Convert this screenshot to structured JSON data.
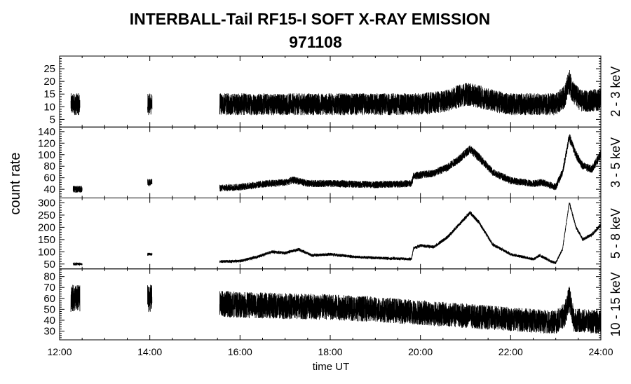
{
  "header": {
    "title": "INTERBALL-Tail RF15-I SOFT X-RAY EMISSION",
    "subtitle": "971108"
  },
  "chart_data": {
    "type": "line",
    "title": "INTERBALL-Tail RF15-I SOFT X-RAY EMISSION",
    "subtitle": "971108",
    "xlabel": "time UT",
    "ylabel": "count rate",
    "xlim": [
      12,
      24
    ],
    "x_ticks": [
      "12:00",
      "14:00",
      "16:00",
      "18:00",
      "20:00",
      "22:00",
      "24:00"
    ],
    "grid": false,
    "panels": [
      {
        "name": "2 - 3 keV",
        "ylim": [
          2,
          30
        ],
        "yticks": [
          5,
          10,
          15,
          20,
          25
        ],
        "coverage": [
          [
            12.25,
            12.45
          ],
          [
            13.95,
            14.05
          ],
          [
            15.55,
            24.0
          ]
        ],
        "x": [
          12.25,
          12.45,
          13.95,
          14.05,
          15.55,
          16,
          17,
          18,
          19,
          20,
          20.5,
          21,
          21.3,
          21.7,
          22,
          23,
          23.2,
          23.3,
          23.4,
          23.6,
          24
        ],
        "y": [
          11,
          11,
          11,
          11,
          11,
          11,
          11,
          11,
          11,
          11,
          12,
          15,
          14,
          12,
          11,
          11,
          14,
          20,
          15,
          12,
          13
        ],
        "noise": 3.5
      },
      {
        "name": "3 - 5 keV",
        "ylim": [
          25,
          148
        ],
        "yticks": [
          40,
          60,
          80,
          100,
          120,
          140
        ],
        "coverage": [
          [
            12.3,
            12.5
          ],
          [
            13.95,
            14.05
          ],
          [
            15.55,
            24.0
          ]
        ],
        "x": [
          12.3,
          12.5,
          13.95,
          14.05,
          15.55,
          16,
          16.5,
          17,
          17.2,
          17.5,
          18,
          19,
          19.8,
          19.85,
          20,
          20.3,
          20.6,
          20.9,
          21.1,
          21.3,
          21.6,
          22,
          22.5,
          22.7,
          23,
          23.15,
          23.3,
          23.45,
          23.6,
          23.8,
          24
        ],
        "y": [
          40,
          40,
          52,
          52,
          42,
          44,
          49,
          52,
          56,
          50,
          50,
          48,
          50,
          63,
          65,
          68,
          78,
          95,
          110,
          95,
          70,
          55,
          50,
          52,
          44,
          70,
          130,
          100,
          80,
          75,
          100
        ],
        "noise": 5
      },
      {
        "name": "5 - 8 keV",
        "ylim": [
          30,
          320
        ],
        "yticks": [
          50,
          100,
          150,
          200,
          250,
          300
        ],
        "coverage": [
          [
            12.3,
            12.5
          ],
          [
            13.95,
            14.05
          ],
          [
            15.55,
            24.0
          ]
        ],
        "x": [
          12.3,
          12.5,
          13.95,
          14.05,
          15.55,
          16,
          16.4,
          16.7,
          17,
          17.3,
          17.6,
          18,
          18.5,
          19,
          19.8,
          19.85,
          20,
          20.3,
          20.6,
          20.9,
          21.1,
          21.3,
          21.6,
          22,
          22.5,
          22.65,
          22.9,
          23,
          23.15,
          23.3,
          23.45,
          23.6,
          23.8,
          24
        ],
        "y": [
          50,
          50,
          90,
          90,
          60,
          62,
          80,
          100,
          95,
          110,
          85,
          90,
          80,
          75,
          70,
          115,
          125,
          120,
          160,
          220,
          260,
          220,
          130,
          90,
          70,
          85,
          60,
          55,
          110,
          300,
          200,
          150,
          170,
          210
        ],
        "noise": 5
      },
      {
        "name": "10 - 15 keV",
        "ylim": [
          22,
          87
        ],
        "yticks": [
          30,
          40,
          50,
          60,
          70,
          80
        ],
        "coverage": [
          [
            12.25,
            12.45
          ],
          [
            13.95,
            14.05
          ],
          [
            15.55,
            24.0
          ]
        ],
        "x": [
          12.25,
          12.45,
          13.95,
          14.05,
          15.55,
          16,
          17,
          18,
          19,
          20,
          21,
          22,
          23,
          23.2,
          23.3,
          23.4,
          24
        ],
        "y": [
          60,
          60,
          60,
          60,
          55,
          54,
          53,
          52,
          50,
          47,
          44,
          41,
          38,
          45,
          60,
          40,
          38
        ],
        "noise": 8
      }
    ]
  }
}
